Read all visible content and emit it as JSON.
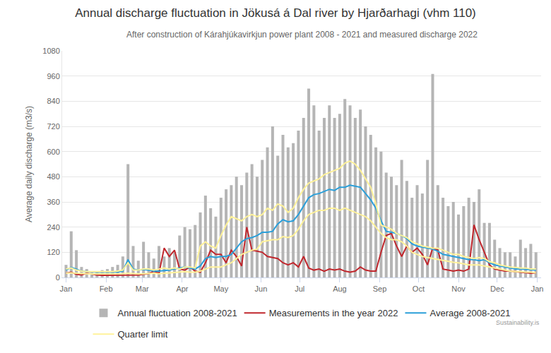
{
  "chart_data": {
    "type": "line",
    "title": "Annual discharge fluctuation in Jökusá á Dal river by Hjarðarhagi (vhm 110)",
    "subtitle": "After construction of Kárahjúkavirkjun power plant 2008 - 2021 and measured discharge 2022",
    "y_label": "Average daily discharge (m3/s)",
    "source": "Sustainability.is",
    "grid": true,
    "legend": "bottom",
    "xlim": [
      -3,
      368
    ],
    "xticks": [
      {
        "value": 0,
        "label": "Jan"
      },
      {
        "value": 31,
        "label": "Feb"
      },
      {
        "value": 59,
        "label": "Mar"
      },
      {
        "value": 90,
        "label": "Apr"
      },
      {
        "value": 120,
        "label": "May"
      },
      {
        "value": 151,
        "label": "Jun"
      },
      {
        "value": 181,
        "label": "Jul"
      },
      {
        "value": 212,
        "label": "Aug"
      },
      {
        "value": 243,
        "label": "Sep"
      },
      {
        "value": 273,
        "label": "Oct"
      },
      {
        "value": 304,
        "label": "Nov"
      },
      {
        "value": 334,
        "label": "Dec"
      },
      {
        "value": 365,
        "label": "Jan"
      }
    ],
    "ylim": [
      0,
      1080
    ],
    "yticks": [
      0,
      120,
      240,
      360,
      480,
      600,
      720,
      840,
      960,
      1080
    ],
    "x": [
      0,
      4,
      8,
      12,
      16,
      20,
      24,
      28,
      32,
      36,
      40,
      44,
      48,
      52,
      56,
      60,
      64,
      68,
      72,
      76,
      80,
      84,
      88,
      92,
      96,
      100,
      104,
      108,
      112,
      116,
      120,
      124,
      128,
      132,
      136,
      140,
      144,
      148,
      152,
      156,
      160,
      164,
      168,
      172,
      176,
      180,
      184,
      188,
      192,
      196,
      200,
      204,
      208,
      212,
      216,
      220,
      224,
      228,
      232,
      236,
      240,
      244,
      248,
      252,
      256,
      260,
      264,
      268,
      272,
      276,
      280,
      284,
      288,
      292,
      296,
      300,
      304,
      308,
      312,
      316,
      320,
      324,
      328,
      332,
      336,
      340,
      344,
      348,
      352,
      356,
      360,
      364
    ],
    "series": [
      {
        "name": "Annual fluctuation 2008-2021",
        "type": "bar",
        "color": "#b5b5b5",
        "values": [
          60,
          220,
          130,
          50,
          40,
          30,
          30,
          35,
          40,
          50,
          60,
          100,
          540,
          150,
          80,
          170,
          120,
          90,
          150,
          100,
          140,
          120,
          200,
          240,
          230,
          250,
          310,
          390,
          330,
          290,
          380,
          420,
          440,
          480,
          440,
          500,
          540,
          480,
          560,
          620,
          720,
          580,
          680,
          620,
          640,
          700,
          760,
          900,
          820,
          700,
          760,
          820,
          760,
          780,
          850,
          820,
          760,
          800,
          720,
          680,
          620,
          600,
          500,
          480,
          440,
          560,
          460,
          380,
          440,
          400,
          560,
          970,
          440,
          380,
          340,
          360,
          300,
          340,
          380,
          360,
          420,
          260,
          260,
          180,
          140,
          120,
          120,
          100,
          180,
          140,
          160,
          120
        ]
      },
      {
        "name": "Measurements in the year 2022",
        "type": "line",
        "color": "#c0272d",
        "values": [
          20,
          25,
          15,
          12,
          20,
          15,
          12,
          10,
          10,
          10,
          10,
          10,
          10,
          10,
          12,
          15,
          18,
          30,
          20,
          140,
          100,
          130,
          40,
          35,
          50,
          30,
          25,
          70,
          130,
          110,
          110,
          70,
          130,
          100,
          55,
          240,
          130,
          125,
          120,
          100,
          95,
          90,
          70,
          60,
          70,
          50,
          100,
          45,
          35,
          40,
          30,
          40,
          35,
          40,
          30,
          25,
          30,
          50,
          35,
          30,
          30,
          120,
          200,
          210,
          150,
          100,
          150,
          120,
          140,
          110,
          60,
          140,
          130,
          40,
          35,
          30,
          35,
          30,
          40,
          250,
          180,
          120,
          60,
          40,
          35,
          30,
          30,
          28,
          25,
          22,
          20,
          22
        ]
      },
      {
        "name": "Average 2008-2021",
        "type": "line",
        "color": "#2b9fd9",
        "values": [
          35,
          48,
          40,
          30,
          28,
          26,
          25,
          25,
          24,
          25,
          26,
          30,
          85,
          40,
          35,
          38,
          35,
          30,
          30,
          32,
          35,
          40,
          45,
          50,
          45,
          40,
          55,
          90,
          100,
          95,
          100,
          100,
          110,
          140,
          170,
          185,
          190,
          200,
          215,
          215,
          220,
          255,
          275,
          265,
          270,
          300,
          340,
          380,
          395,
          400,
          410,
          420,
          415,
          430,
          430,
          440,
          435,
          430,
          400,
          370,
          330,
          270,
          220,
          215,
          210,
          200,
          185,
          160,
          150,
          145,
          140,
          135,
          125,
          110,
          105,
          100,
          95,
          90,
          85,
          85,
          80,
          85,
          70,
          60,
          55,
          50,
          45,
          40,
          40,
          38,
          35,
          35
        ]
      },
      {
        "name": "Quarter limit",
        "type": "line",
        "color": "#fff29a",
        "values": [
          40,
          45,
          35,
          30,
          28,
          28,
          27,
          27,
          28,
          28,
          30,
          35,
          70,
          35,
          35,
          40,
          40,
          35,
          40,
          45,
          40,
          45,
          40,
          50,
          50,
          45,
          150,
          170,
          150,
          140,
          200,
          250,
          290,
          280,
          270,
          290,
          300,
          290,
          300,
          330,
          320,
          350,
          340,
          310,
          330,
          380,
          420,
          450,
          460,
          470,
          490,
          500,
          510,
          520,
          545,
          555,
          540,
          510,
          470,
          430,
          350,
          250,
          240,
          230,
          210,
          200,
          190,
          170,
          160,
          150,
          145,
          140,
          140,
          130,
          120,
          110,
          110,
          100,
          95,
          90,
          95,
          90,
          75,
          70,
          60,
          55,
          50,
          48,
          45,
          45,
          40,
          40
        ]
      },
      {
        "name": "Quarter limit",
        "type": "line",
        "color": "#fff29a",
        "values": [
          20,
          22,
          20,
          18,
          18,
          17,
          17,
          16,
          16,
          16,
          17,
          18,
          20,
          18,
          17,
          18,
          20,
          20,
          18,
          20,
          22,
          22,
          25,
          28,
          25,
          25,
          30,
          40,
          50,
          50,
          50,
          60,
          70,
          90,
          110,
          120,
          130,
          135,
          170,
          175,
          180,
          180,
          195,
          190,
          200,
          230,
          270,
          300,
          310,
          320,
          320,
          330,
          330,
          320,
          330,
          320,
          310,
          300,
          290,
          270,
          240,
          210,
          190,
          180,
          180,
          170,
          150,
          120,
          110,
          100,
          95,
          90,
          85,
          80,
          75,
          72,
          70,
          65,
          60,
          60,
          60,
          55,
          50,
          45,
          40,
          35,
          30,
          28,
          28,
          25,
          25,
          22
        ]
      }
    ]
  }
}
